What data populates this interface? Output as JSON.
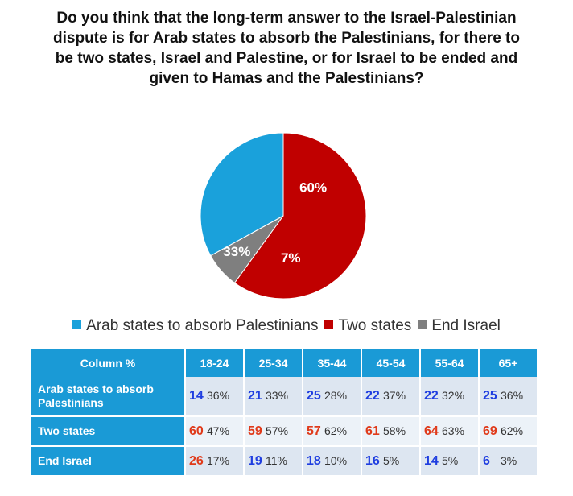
{
  "title": "Do you think that the long-term answer to the Israel-Palestinian dispute is for Arab states to absorb the Palestinians, for there to be two states, Israel and Palestine, or for Israel to be ended and given to Hamas and the Palestinians?",
  "colors": {
    "arab": "#1aa1db",
    "two": "#c00000",
    "end": "#7f7f7f",
    "header": "#1a9ad6"
  },
  "chart_data": [
    {
      "type": "pie",
      "slices": [
        {
          "name": "Arab states to absorb Palestinians",
          "value": 33,
          "label": "33%",
          "color": "#1aa1db"
        },
        {
          "name": "Two states",
          "value": 60,
          "label": "60%",
          "color": "#c00000"
        },
        {
          "name": "End Israel",
          "value": 7,
          "label": "7%",
          "color": "#7f7f7f"
        }
      ],
      "legend": [
        {
          "label": "Arab states to absorb Palestinians",
          "color": "#1aa1db"
        },
        {
          "label": "Two states",
          "color": "#c00000"
        },
        {
          "label": "End Israel",
          "color": "#7f7f7f"
        }
      ],
      "legend_position": "bottom"
    },
    {
      "type": "table",
      "header": [
        "Column %",
        "18-24",
        "25-34",
        "35-44",
        "45-54",
        "55-64",
        "65+"
      ],
      "rows": [
        {
          "label": "Arab states to absorb Palestinians",
          "cells": [
            {
              "n": "14",
              "nc": "#1f3ee0",
              "p": "36%"
            },
            {
              "n": "21",
              "nc": "#1f3ee0",
              "p": "33%"
            },
            {
              "n": "25",
              "nc": "#1f3ee0",
              "p": "28%"
            },
            {
              "n": "22",
              "nc": "#1f3ee0",
              "p": "37%"
            },
            {
              "n": "22",
              "nc": "#1f3ee0",
              "p": "32%"
            },
            {
              "n": "25",
              "nc": "#1f3ee0",
              "p": "36%"
            }
          ]
        },
        {
          "label": "Two states",
          "cells": [
            {
              "n": "60",
              "nc": "#e03a1a",
              "p": "47%"
            },
            {
              "n": "59",
              "nc": "#e03a1a",
              "p": "57%"
            },
            {
              "n": "57",
              "nc": "#e03a1a",
              "p": "62%"
            },
            {
              "n": "61",
              "nc": "#e03a1a",
              "p": "58%"
            },
            {
              "n": "64",
              "nc": "#e03a1a",
              "p": "63%"
            },
            {
              "n": "69",
              "nc": "#e03a1a",
              "p": "62%"
            }
          ]
        },
        {
          "label": "End Israel",
          "cells": [
            {
              "n": "26",
              "nc": "#e03a1a",
              "p": "17%"
            },
            {
              "n": "19",
              "nc": "#1f3ee0",
              "p": "11%"
            },
            {
              "n": "18",
              "nc": "#1f3ee0",
              "p": "10%"
            },
            {
              "n": "16",
              "nc": "#1f3ee0",
              "p": "5%"
            },
            {
              "n": "14",
              "nc": "#1f3ee0",
              "p": "5%"
            },
            {
              "n": "6",
              "nc": "#1f3ee0",
              "p": "3%"
            }
          ]
        }
      ]
    }
  ]
}
